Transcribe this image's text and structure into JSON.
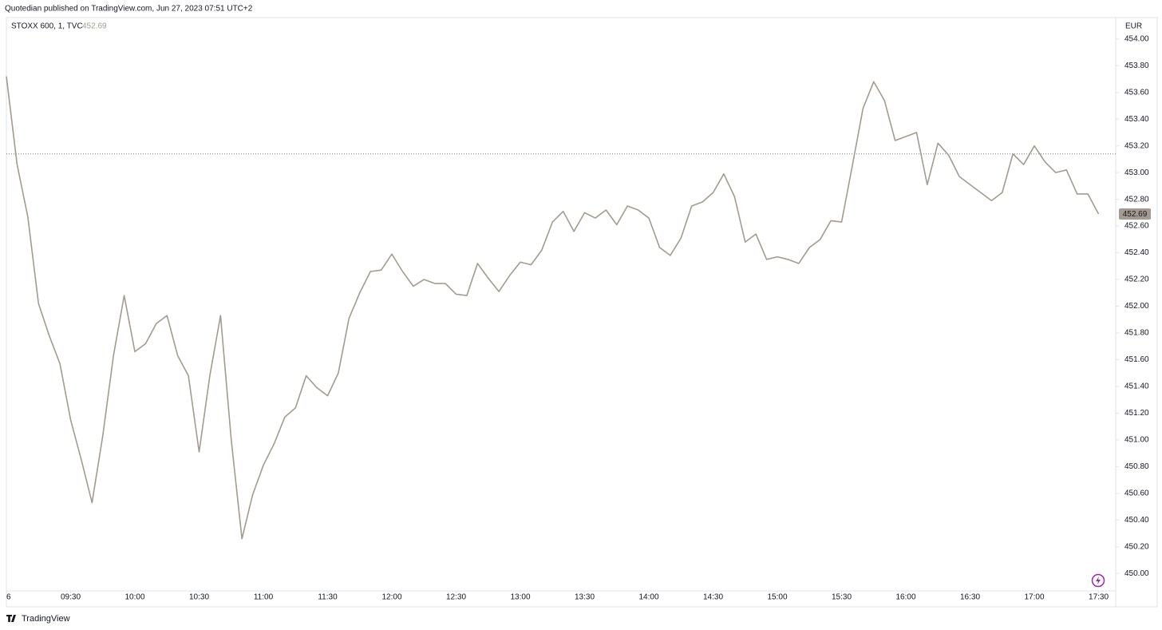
{
  "header": {
    "text": "Quotedian published on TradingView.com, Jun 27, 2023 07:51 UTC+2"
  },
  "footer": {
    "brand": "TradingView"
  },
  "chart_data": {
    "type": "line",
    "legend": {
      "symbol": "STOXX 600, 1, TVC"
    },
    "currency": "EUR",
    "x": [
      "09:00",
      "09:05",
      "09:10",
      "09:15",
      "09:20",
      "09:25",
      "09:30",
      "09:35",
      "09:40",
      "09:45",
      "09:50",
      "09:55",
      "10:00",
      "10:05",
      "10:10",
      "10:15",
      "10:20",
      "10:25",
      "10:30",
      "10:35",
      "10:40",
      "10:45",
      "10:50",
      "10:55",
      "11:00",
      "11:05",
      "11:10",
      "11:15",
      "11:20",
      "11:25",
      "11:30",
      "11:35",
      "11:40",
      "11:45",
      "11:50",
      "11:55",
      "12:00",
      "12:05",
      "12:10",
      "12:15",
      "12:20",
      "12:25",
      "12:30",
      "12:35",
      "12:40",
      "12:45",
      "12:50",
      "12:55",
      "13:00",
      "13:05",
      "13:10",
      "13:15",
      "13:20",
      "13:25",
      "13:30",
      "13:35",
      "13:40",
      "13:45",
      "13:50",
      "13:55",
      "14:00",
      "14:05",
      "14:10",
      "14:15",
      "14:20",
      "14:25",
      "14:30",
      "14:35",
      "14:40",
      "14:45",
      "14:50",
      "14:55",
      "15:00",
      "15:05",
      "15:10",
      "15:15",
      "15:20",
      "15:25",
      "15:30",
      "15:35",
      "15:40",
      "15:45",
      "15:50",
      "15:55",
      "16:00",
      "16:05",
      "16:10",
      "16:15",
      "16:20",
      "16:25",
      "16:30",
      "16:35",
      "16:40",
      "16:45",
      "16:50",
      "16:55",
      "17:00",
      "17:05",
      "17:10",
      "17:15",
      "17:20",
      "17:25",
      "17:30"
    ],
    "series": [
      {
        "name": "STOXX 600",
        "color": "#a39b8f",
        "values": [
          453.72,
          453.06,
          452.67,
          452.02,
          451.78,
          451.57,
          451.15,
          450.85,
          450.53,
          451.03,
          451.63,
          452.08,
          451.66,
          451.72,
          451.87,
          451.93,
          451.63,
          451.48,
          450.91,
          451.48,
          451.93,
          451.0,
          450.26,
          450.59,
          450.81,
          450.97,
          451.17,
          451.24,
          451.48,
          451.39,
          451.33,
          451.5,
          451.91,
          452.1,
          452.26,
          452.27,
          452.39,
          452.26,
          452.15,
          452.2,
          452.17,
          452.17,
          452.09,
          452.08,
          452.32,
          452.21,
          452.11,
          452.23,
          452.33,
          452.31,
          452.42,
          452.63,
          452.71,
          452.56,
          452.7,
          452.66,
          452.72,
          452.61,
          452.75,
          452.72,
          452.66,
          452.44,
          452.38,
          452.51,
          452.75,
          452.78,
          452.85,
          452.99,
          452.82,
          452.48,
          452.54,
          452.35,
          452.37,
          452.35,
          452.32,
          452.44,
          452.5,
          452.64,
          452.63,
          453.05,
          453.48,
          453.68,
          453.54,
          453.24,
          453.27,
          453.3,
          452.91,
          453.22,
          453.13,
          452.97,
          452.91,
          452.85,
          452.79,
          452.85,
          453.14,
          453.06,
          453.2,
          453.08,
          453.0,
          453.02,
          452.84,
          452.84,
          452.69
        ]
      }
    ],
    "reference_line": 453.14,
    "xlim": [
      "09:00",
      "17:38"
    ],
    "xticks": [
      {
        "value": "09:00",
        "label": "6"
      },
      "09:30",
      "10:00",
      "10:30",
      "11:00",
      "11:30",
      "12:00",
      "12:30",
      "13:00",
      "13:30",
      "14:00",
      "14:30",
      "15:00",
      "15:30",
      "16:00",
      "16:30",
      "17:00",
      "17:30"
    ],
    "ylim": [
      449.87,
      454.16
    ],
    "yticks": [
      {
        "value": 450.0,
        "label": "450.00"
      },
      {
        "value": 450.2,
        "label": "450.20"
      },
      {
        "value": 450.4,
        "label": "450.40"
      },
      {
        "value": 450.6,
        "label": "450.60"
      },
      {
        "value": 450.8,
        "label": "450.80"
      },
      {
        "value": 451.0,
        "label": "451.00"
      },
      {
        "value": 451.2,
        "label": "451.20"
      },
      {
        "value": 451.4,
        "label": "451.40"
      },
      {
        "value": 451.6,
        "label": "451.60"
      },
      {
        "value": 451.8,
        "label": "451.80"
      },
      {
        "value": 452.0,
        "label": "452.00"
      },
      {
        "value": 452.2,
        "label": "452.20"
      },
      {
        "value": 452.4,
        "label": "452.40"
      },
      {
        "value": 452.6,
        "label": "452.60"
      },
      {
        "value": 452.8,
        "label": "452.80"
      },
      {
        "value": 453.0,
        "label": "453.00"
      },
      {
        "value": 453.2,
        "label": "453.20"
      },
      {
        "value": 453.4,
        "label": "453.40"
      },
      {
        "value": 453.6,
        "label": "453.60"
      },
      {
        "value": 453.8,
        "label": "453.80"
      },
      {
        "value": 454.0,
        "label": "454.00"
      }
    ],
    "grid": false
  }
}
